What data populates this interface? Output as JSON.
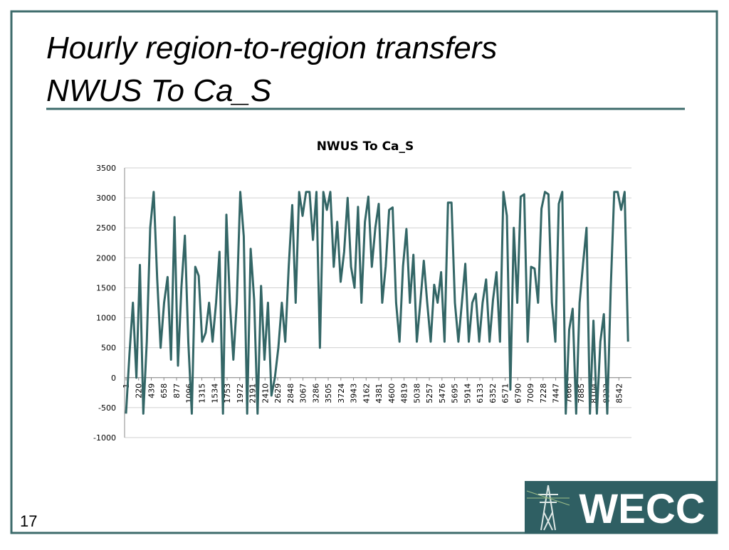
{
  "slide": {
    "title_lines": [
      "Hourly region-to-region transfers",
      "NWUS To Ca_S"
    ],
    "page_number": "17",
    "logo_text": "WECC"
  },
  "chart_data": {
    "type": "line",
    "title": "NWUS To Ca_S",
    "x": [
      1,
      61,
      121,
      181,
      241,
      301,
      361,
      421,
      481,
      541,
      601,
      661,
      721,
      781,
      841,
      901,
      961,
      1021,
      1081,
      1141,
      1201,
      1261,
      1321,
      1381,
      1441,
      1501,
      1561,
      1621,
      1681,
      1741,
      1801,
      1861,
      1921,
      1981,
      2041,
      2101,
      2161,
      2221,
      2281,
      2341,
      2401,
      2461,
      2521,
      2581,
      2641,
      2701,
      2761,
      2821,
      2881,
      2941,
      3001,
      3061,
      3121,
      3181,
      3241,
      3301,
      3361,
      3421,
      3481,
      3541,
      3601,
      3661,
      3721,
      3781,
      3841,
      3901,
      3961,
      4021,
      4081,
      4141,
      4201,
      4261,
      4321,
      4381,
      4441,
      4501,
      4561,
      4621,
      4681,
      4741,
      4801,
      4861,
      4921,
      4981,
      5041,
      5101,
      5161,
      5221,
      5281,
      5341,
      5401,
      5461,
      5521,
      5581,
      5641,
      5701,
      5761,
      5821,
      5881,
      5941,
      6001,
      6061,
      6121,
      6181,
      6241,
      6301,
      6361,
      6421,
      6481,
      6541,
      6601,
      6661,
      6721,
      6781,
      6841,
      6901,
      6961,
      7021,
      7081,
      7141,
      7201,
      7261,
      7321,
      7381,
      7441,
      7501,
      7561,
      7621,
      7681,
      7741,
      7801,
      7861,
      7921,
      7981,
      8041,
      8101,
      8161,
      8221,
      8281,
      8341,
      8401,
      8461,
      8521,
      8581,
      8641,
      8701
    ],
    "series": [
      {
        "name": "NWUS To Ca_S",
        "color": "#336666",
        "values": [
          -600,
          400,
          1250,
          0,
          1880,
          -600,
          600,
          2500,
          3100,
          1650,
          500,
          1250,
          1680,
          300,
          2680,
          200,
          1500,
          2370,
          600,
          -600,
          1850,
          1700,
          600,
          750,
          1250,
          600,
          1250,
          2100,
          -600,
          2720,
          1250,
          300,
          1250,
          3100,
          2360,
          -600,
          2150,
          1300,
          -600,
          1530,
          300,
          1250,
          -300,
          0,
          500,
          1250,
          600,
          1860,
          2880,
          1250,
          3100,
          2700,
          3100,
          3100,
          2300,
          3100,
          500,
          3100,
          2800,
          3100,
          1850,
          2600,
          1600,
          2100,
          3000,
          1850,
          1500,
          2850,
          1250,
          2600,
          3020,
          1850,
          2500,
          2900,
          1250,
          1860,
          2800,
          2840,
          1250,
          600,
          1860,
          2480,
          1250,
          2050,
          600,
          1250,
          1950,
          1250,
          600,
          1550,
          1250,
          1760,
          600,
          2920,
          2920,
          1250,
          600,
          1250,
          1900,
          600,
          1250,
          1400,
          600,
          1250,
          1640,
          600,
          1300,
          1760,
          600,
          3100,
          2700,
          -200,
          2500,
          1250,
          3020,
          3060,
          600,
          1850,
          1820,
          1250,
          2820,
          3100,
          3060,
          1250,
          600,
          2900,
          3100,
          -600,
          800,
          1150,
          -600,
          1250,
          1900,
          2500,
          -600,
          950,
          -600,
          600,
          1060,
          -600,
          1500,
          3100,
          3100,
          2800,
          3100,
          600
        ]
      }
    ],
    "xlim": [
      1,
      8760
    ],
    "xticks": [
      1,
      220,
      439,
      658,
      877,
      1096,
      1315,
      1534,
      1753,
      1972,
      2191,
      2410,
      2629,
      2848,
      3067,
      3286,
      3505,
      3724,
      3943,
      4162,
      4381,
      4600,
      4819,
      5038,
      5257,
      5476,
      5695,
      5914,
      6133,
      6352,
      6571,
      6790,
      7009,
      7228,
      7447,
      7666,
      7885,
      8104,
      8323,
      8542
    ],
    "ylim": [
      -1000,
      3500
    ],
    "yticks": [
      -1000,
      -500,
      0,
      500,
      1000,
      1500,
      2000,
      2500,
      3000,
      3500
    ],
    "grid": true
  }
}
